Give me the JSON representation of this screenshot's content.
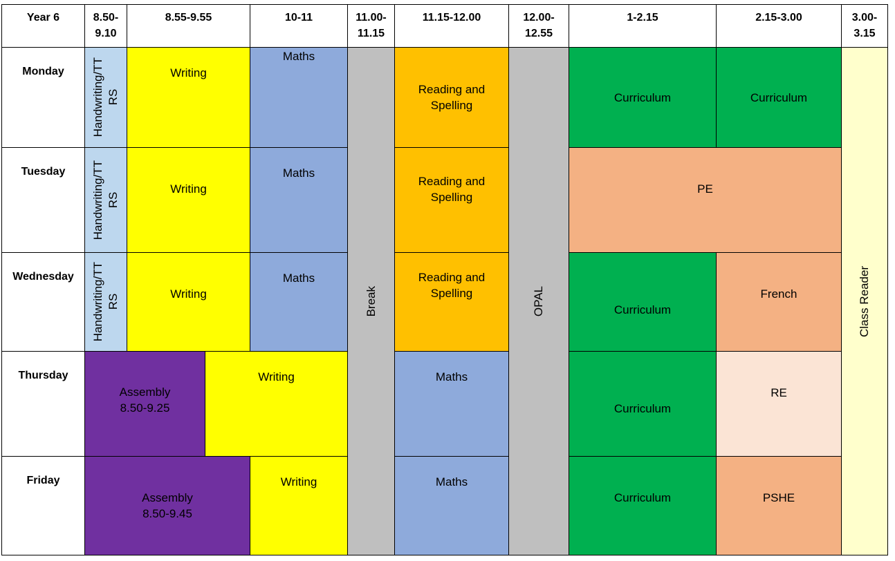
{
  "timetable": {
    "corner": "Year 6",
    "periods": [
      "8.50-\n9.10",
      "8.55-9.55",
      "10-11",
      "11.00-\n11.15",
      "11.15-12.00",
      "12.00-\n12.55",
      "1-2.15",
      "2.15-3.00",
      "3.00-\n3.15"
    ],
    "days": [
      "Monday",
      "Tuesday",
      "Wednesday",
      "Thursday",
      "Friday"
    ],
    "lessons": {
      "handwriting_rs": "Handwriting/TT\nRS",
      "writing": "Writing",
      "maths": "Maths",
      "break": "Break",
      "reading_spelling": "Reading and\nSpelling",
      "opal": "OPAL",
      "curriculum": "Curriculum",
      "pe": "PE",
      "french": "French",
      "re": "RE",
      "pshe": "PSHE",
      "class_reader": "Class Reader",
      "assembly_thursday": "Assembly\n8.50-9.25",
      "assembly_friday": "Assembly\n8.50-9.45"
    },
    "colors": {
      "handwriting": "#bdd7ee",
      "writing": "#ffff00",
      "maths": "#8eaadb",
      "break_opal": "#bfbfbf",
      "reading": "#ffc000",
      "curriculum": "#00b050",
      "pe_french_pshe": "#f4b183",
      "re": "#fbe4d5",
      "assembly": "#7030a0",
      "class_reader": "#ffffcc"
    }
  }
}
